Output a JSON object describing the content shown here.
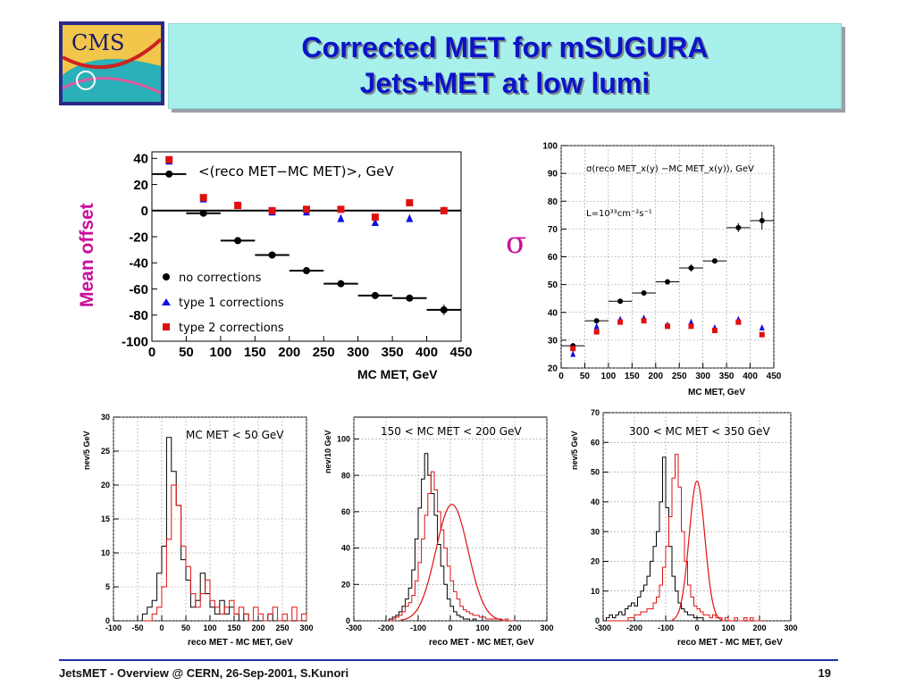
{
  "header": {
    "logo_text": "CMS",
    "title_line1": "Corrected MET for mSUGURA",
    "title_line2": "Jets+MET at low lumi"
  },
  "side_labels": {
    "mean_offset": "Mean offset",
    "sigma": "σ"
  },
  "footer": {
    "text": "JetsMET - Overview @ CERN, 26-Sep-2001, S.Kunori",
    "page": "19"
  },
  "colors": {
    "title": "#0b14c8",
    "magenta": "#c8109a",
    "blue": "#1010e0",
    "red": "#e01010",
    "black": "#000000"
  },
  "chart_data": [
    {
      "id": "mean",
      "type": "scatter",
      "title": "<(reco MET−MC MET)>, GeV",
      "xlabel": "MC MET, GeV",
      "ylabel": "",
      "xlim": [
        0,
        450
      ],
      "ylim": [
        -100,
        45
      ],
      "xticks": [
        0,
        50,
        100,
        150,
        200,
        250,
        300,
        350,
        400,
        450
      ],
      "yticks": [
        -100,
        -80,
        -60,
        -40,
        -20,
        0,
        20,
        40
      ],
      "x": [
        25,
        75,
        125,
        175,
        225,
        275,
        325,
        375,
        425
      ],
      "series": [
        {
          "name": "no corrections",
          "color": "#000000",
          "marker": "circle",
          "values": [
            28,
            -2,
            -23,
            -34,
            -46,
            -56,
            -65,
            -67,
            -76
          ]
        },
        {
          "name": "type 1 corrections",
          "color": "#1010e0",
          "marker": "triangle",
          "values": [
            38,
            9,
            4,
            -1,
            -1,
            -6,
            -9,
            -6,
            0
          ]
        },
        {
          "name": "type 2 corrections",
          "color": "#e01010",
          "marker": "square",
          "values": [
            39,
            10,
            4,
            0,
            1,
            1,
            -5,
            6,
            0
          ]
        }
      ],
      "legend": "bottom-left"
    },
    {
      "id": "sigma",
      "type": "scatter",
      "title": "σ(reco MET_x(y) −MC MET_x(y)), GeV",
      "annotation": "L=10³³cm⁻²s⁻¹",
      "xlabel": "MC MET, GeV",
      "xlim": [
        0,
        450
      ],
      "ylim": [
        20,
        100
      ],
      "xticks": [
        0,
        50,
        100,
        150,
        200,
        250,
        300,
        350,
        400,
        450
      ],
      "yticks": [
        20,
        30,
        40,
        50,
        60,
        70,
        80,
        90,
        100
      ],
      "x": [
        25,
        75,
        125,
        175,
        225,
        275,
        325,
        375,
        425
      ],
      "series": [
        {
          "name": "no corrections",
          "color": "#000000",
          "marker": "circle",
          "values": [
            28,
            37,
            44,
            47,
            51,
            56,
            58.5,
            70.5,
            73
          ]
        },
        {
          "name": "type 1 corrections",
          "color": "#1010e0",
          "marker": "triangle",
          "values": [
            25,
            35,
            37.5,
            38,
            35.5,
            36.5,
            34.5,
            37.5,
            34.5
          ]
        },
        {
          "name": "type 2 corrections",
          "color": "#e01010",
          "marker": "square",
          "values": [
            27,
            33,
            36.5,
            37,
            35,
            35,
            33.5,
            36.5,
            32
          ]
        }
      ]
    },
    {
      "id": "h1",
      "type": "bar",
      "title": "MC MET < 50 GeV",
      "xlabel": "reco MET - MC MET, GeV",
      "ylabel": "nev/5 GeV",
      "xlim": [
        -100,
        300
      ],
      "ylim": [
        0,
        30
      ],
      "xticks": [
        -100,
        -50,
        0,
        50,
        100,
        150,
        200,
        250,
        300
      ],
      "yticks": [
        0,
        5,
        10,
        15,
        20,
        25,
        30
      ],
      "bin_width": 10,
      "x_start": -40,
      "series": [
        {
          "name": "",
          "color": "#000000",
          "values": [
            1,
            2,
            3,
            7,
            11,
            27,
            22,
            17,
            9,
            6,
            2,
            3,
            7,
            4,
            2,
            1,
            3,
            1,
            2,
            1,
            0,
            1,
            0,
            0,
            0,
            0,
            1,
            0,
            0,
            0,
            0,
            0,
            0,
            0
          ]
        },
        {
          "name": "",
          "color": "#e01010",
          "values": [
            0,
            0,
            1,
            2,
            5,
            12,
            20,
            17,
            11,
            8,
            4,
            2,
            4,
            6,
            3,
            2,
            1,
            2,
            3,
            1,
            2,
            1,
            0,
            2,
            1,
            0,
            1,
            2,
            0,
            1,
            0,
            2,
            0,
            1
          ]
        }
      ]
    },
    {
      "id": "h2",
      "type": "bar",
      "title": "150 < MC MET < 200 GeV",
      "xlabel": "reco MET - MC MET, GeV",
      "ylabel": "nev/10 GeV",
      "xlim": [
        -300,
        300
      ],
      "ylim": [
        0,
        112
      ],
      "xticks": [
        -300,
        -200,
        -100,
        0,
        100,
        200,
        300
      ],
      "yticks": [
        0,
        20,
        40,
        60,
        80,
        100
      ],
      "bin_width": 10,
      "x_start": -190,
      "series": [
        {
          "name": "",
          "color": "#000000",
          "values": [
            1,
            2,
            3,
            5,
            8,
            12,
            18,
            28,
            45,
            62,
            78,
            92,
            80,
            70,
            58,
            42,
            30,
            20,
            12,
            8,
            5,
            3,
            2,
            1,
            1,
            0,
            1,
            0,
            0,
            0,
            0,
            0,
            0,
            0,
            0,
            0,
            0,
            0,
            0
          ]
        },
        {
          "name": "",
          "color": "#e01010",
          "values": [
            0,
            1,
            2,
            3,
            5,
            8,
            10,
            14,
            22,
            32,
            45,
            58,
            70,
            82,
            72,
            60,
            50,
            40,
            30,
            22,
            16,
            12,
            8,
            6,
            5,
            4,
            3,
            3,
            2,
            2,
            1,
            1,
            1,
            1,
            1,
            0,
            1,
            0,
            0
          ]
        }
      ],
      "fit": {
        "color": "#e01010",
        "mean": 5,
        "sigma": 50,
        "peak": 64
      }
    },
    {
      "id": "h3",
      "type": "bar",
      "title": "300 < MC MET < 350 GeV",
      "xlabel": "reco MET - MC MET, GeV",
      "ylabel": "nev/5 GeV",
      "xlim": [
        -300,
        300
      ],
      "ylim": [
        0,
        70
      ],
      "xticks": [
        -300,
        -200,
        -100,
        0,
        100,
        200,
        300
      ],
      "yticks": [
        0,
        10,
        20,
        30,
        40,
        50,
        60,
        70
      ],
      "bin_width": 10,
      "x_start": -290,
      "series": [
        {
          "name": "",
          "color": "#000000",
          "values": [
            1,
            2,
            1,
            2,
            3,
            2,
            4,
            5,
            6,
            5,
            8,
            10,
            12,
            15,
            20,
            25,
            30,
            40,
            55,
            38,
            25,
            15,
            10,
            6,
            4,
            3,
            2,
            2,
            1,
            1,
            1,
            0,
            0,
            0,
            0,
            0,
            0,
            0,
            0,
            0,
            0,
            0,
            0,
            0,
            0,
            0,
            0,
            0,
            0,
            0
          ]
        },
        {
          "name": "",
          "color": "#e01010",
          "values": [
            0,
            0,
            0,
            0,
            0,
            0,
            0,
            1,
            1,
            2,
            2,
            3,
            3,
            4,
            4,
            6,
            8,
            12,
            18,
            25,
            35,
            48,
            56,
            45,
            30,
            20,
            12,
            8,
            5,
            4,
            3,
            2,
            2,
            1,
            2,
            1,
            1,
            0,
            1,
            0,
            0,
            1,
            0,
            0,
            1,
            0,
            1,
            0,
            0,
            0
          ]
        }
      ],
      "fit": {
        "color": "#e01010",
        "mean": 0,
        "sigma": 25,
        "peak": 47
      }
    }
  ]
}
